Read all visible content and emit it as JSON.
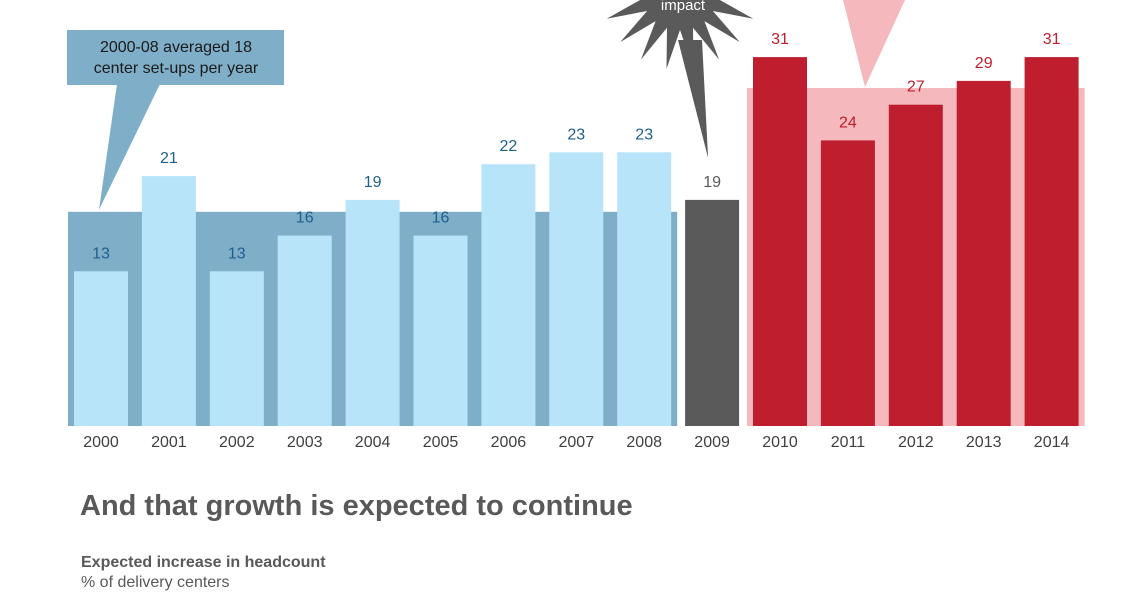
{
  "chart_data": {
    "type": "bar",
    "categories": [
      "2000",
      "2001",
      "2002",
      "2003",
      "2004",
      "2005",
      "2006",
      "2007",
      "2008",
      "2009",
      "2010",
      "2011",
      "2012",
      "2013",
      "2014"
    ],
    "values": [
      13,
      21,
      13,
      16,
      19,
      16,
      22,
      23,
      23,
      19,
      31,
      24,
      27,
      29,
      31
    ],
    "ylim": [
      0,
      34
    ],
    "grid": false,
    "legend": "none",
    "periods": [
      {
        "years": [
          "2000",
          "2008"
        ],
        "average": 18,
        "bar_color": "#b8e4fa",
        "band_color": "#7eaec8",
        "label_color": "#1f5f8b"
      },
      {
        "years": [
          "2009",
          "2009"
        ],
        "bar_color": "#5a5a5a",
        "label_color": "#595959"
      },
      {
        "years": [
          "2010",
          "2014"
        ],
        "average": 28.4,
        "bar_color": "#be1e2d",
        "band_color": "#f4b8bd",
        "label_color": "#be1e2d"
      }
    ],
    "annotations": {
      "average_callout": [
        "2000-08 averaged 18",
        "center set-ups per year"
      ],
      "burst_text": "impact"
    }
  },
  "headline": "And that growth is expected to continue",
  "subhead": "Expected increase in headcount",
  "subunit": "% of delivery centers"
}
